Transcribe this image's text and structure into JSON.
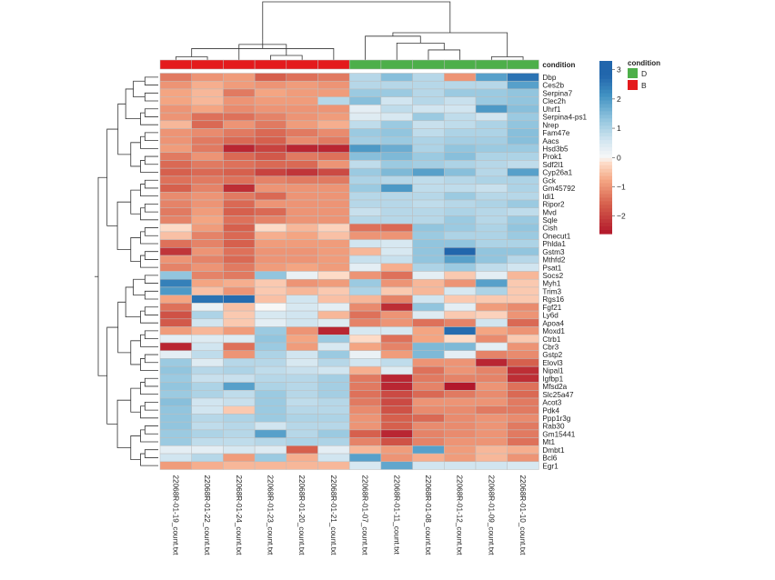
{
  "chart_data": {
    "type": "heatmap",
    "title": "",
    "xlabel": "",
    "ylabel": "",
    "annotation_label": "condition",
    "samples": [
      "22068R-01-19_count.txt",
      "22068R-01-22_count.txt",
      "22068R-01-24_count.txt",
      "22068R-01-23_count.txt",
      "22068R-01-20_count.txt",
      "22068R-01-21_count.txt",
      "22068R-01-07_count.txt",
      "22068R-01-11_count.txt",
      "22068R-01-08_count.txt",
      "22068R-01-12_count.txt",
      "22068R-01-09_count.txt",
      "22068R-01-10_count.txt"
    ],
    "sample_condition": [
      "B",
      "B",
      "B",
      "B",
      "B",
      "B",
      "D",
      "D",
      "D",
      "D",
      "D",
      "D"
    ],
    "condition_colors": {
      "D": "#4daf4a",
      "B": "#e41a1c"
    },
    "genes": [
      "Dbp",
      "Ces2b",
      "Serpina7",
      "Clec2h",
      "Uhrf1",
      "Serpina4-ps1",
      "Nrep",
      "Fam47e",
      "Aacs",
      "Hsd3b5",
      "Prok1",
      "Sdf2l1",
      "Cyp26a1",
      "Gck",
      "Gm45792",
      "Idi1",
      "Ripor2",
      "Mvd",
      "Sqle",
      "Cish",
      "Onecut1",
      "Phlda1",
      "Gstm3",
      "Mthfd2",
      "Psat1",
      "Socs2",
      "Myh1",
      "Trim3",
      "Rgs16",
      "Fgf21",
      "Ly6d",
      "Apoa4",
      "Moxd1",
      "Ctrb1",
      "Cbr3",
      "Gstp2",
      "Elovl3",
      "Nipal1",
      "Igfbp1",
      "Mfsd2a",
      "Slc25a47",
      "Acot3",
      "Pdk4",
      "Ppp1r3g",
      "Rab30",
      "Gm15441",
      "Mt1",
      "Dmbt1",
      "Bcl6",
      "Egr1"
    ],
    "values": [
      [
        -1.3,
        -1.0,
        -0.9,
        -1.6,
        -1.4,
        -1.3,
        0.9,
        1.4,
        0.9,
        -1.0,
        1.9,
        2.6
      ],
      [
        -1.0,
        -0.7,
        -0.9,
        -1.0,
        -0.9,
        -1.0,
        0.9,
        0.9,
        0.9,
        0.9,
        0.9,
        1.9
      ],
      [
        -0.8,
        -0.6,
        -1.3,
        -0.8,
        -0.9,
        -0.9,
        1.2,
        1.2,
        0.9,
        1.2,
        1.2,
        1.3
      ],
      [
        -0.8,
        -0.6,
        -1.0,
        -0.9,
        -0.9,
        0.9,
        1.4,
        0.6,
        0.9,
        0.7,
        1.2,
        1.3
      ],
      [
        -1.0,
        -0.8,
        -1.1,
        -1.0,
        -1.0,
        -1.0,
        0.3,
        0.8,
        0.6,
        0.6,
        2.0,
        1.4
      ],
      [
        -1.0,
        -1.4,
        -1.4,
        -1.2,
        -1.0,
        -0.9,
        0.4,
        0.5,
        1.2,
        0.8,
        0.6,
        1.2
      ],
      [
        -0.6,
        -1.5,
        -1.0,
        -1.3,
        -0.9,
        -0.7,
        0.8,
        1.2,
        0.7,
        0.8,
        1.0,
        1.3
      ],
      [
        -1.0,
        -1.1,
        -1.3,
        -1.5,
        -1.3,
        -1.1,
        1.2,
        1.3,
        0.8,
        1.0,
        1.0,
        1.4
      ],
      [
        -1.0,
        -1.3,
        -1.5,
        -1.6,
        -1.1,
        -1.3,
        1.1,
        1.2,
        1.0,
        1.1,
        1.1,
        1.4
      ],
      [
        -0.9,
        -1.3,
        -2.4,
        -2.0,
        -2.4,
        -2.4,
        2.0,
        1.7,
        1.0,
        1.3,
        1.2,
        1.2
      ],
      [
        -1.3,
        -1.0,
        -1.5,
        -1.7,
        -1.3,
        -1.4,
        1.4,
        1.5,
        1.2,
        1.4,
        1.0,
        1.0
      ],
      [
        -1.5,
        -1.3,
        -1.4,
        -1.5,
        -1.5,
        -1.0,
        0.8,
        1.2,
        1.1,
        1.0,
        0.9,
        0.8
      ],
      [
        -1.6,
        -1.5,
        -1.6,
        -2.0,
        -2.2,
        -1.9,
        1.2,
        1.5,
        1.9,
        1.4,
        0.9,
        1.9
      ],
      [
        -1.4,
        -1.3,
        -1.4,
        -1.2,
        -1.3,
        -1.3,
        1.0,
        0.9,
        0.8,
        0.9,
        1.0,
        1.0
      ],
      [
        -1.6,
        -1.2,
        -2.3,
        -1.0,
        -1.0,
        -1.0,
        1.2,
        2.0,
        0.8,
        0.8,
        0.7,
        1.0
      ],
      [
        -1.1,
        -1.0,
        -1.3,
        -1.5,
        -1.0,
        -1.0,
        0.9,
        0.9,
        0.9,
        1.2,
        0.9,
        0.9
      ],
      [
        -1.2,
        -1.0,
        -1.5,
        -1.0,
        -1.0,
        -1.0,
        0.9,
        0.9,
        0.8,
        0.9,
        1.0,
        1.2
      ],
      [
        -1.3,
        -0.9,
        -1.6,
        -1.5,
        -1.0,
        -1.0,
        0.7,
        0.9,
        0.9,
        1.0,
        0.9,
        0.8
      ],
      [
        -1.2,
        -0.8,
        -1.4,
        -1.2,
        -1.0,
        -1.0,
        0.9,
        0.9,
        0.9,
        1.2,
        0.9,
        1.2
      ],
      [
        -0.2,
        -0.9,
        -1.6,
        -0.2,
        -0.6,
        -0.3,
        -1.4,
        -1.5,
        1.3,
        1.2,
        1.0,
        1.3
      ],
      [
        -0.5,
        -1.2,
        -1.5,
        -0.7,
        -0.8,
        -0.5,
        -1.0,
        -1.0,
        1.2,
        1.0,
        1.0,
        1.2
      ],
      [
        -1.4,
        -1.2,
        -1.6,
        -0.9,
        -0.9,
        -0.9,
        0.6,
        0.5,
        1.3,
        1.3,
        1.0,
        1.0
      ],
      [
        -2.2,
        -1.0,
        -1.4,
        -1.0,
        -1.0,
        -0.9,
        -0.6,
        0.5,
        1.3,
        2.8,
        1.3,
        1.3
      ],
      [
        -1.0,
        -1.2,
        -1.5,
        -1.0,
        -1.0,
        -0.9,
        0.7,
        0.7,
        1.3,
        1.9,
        1.3,
        0.9
      ],
      [
        -1.2,
        -1.0,
        -1.3,
        -0.9,
        -0.8,
        -0.9,
        0.3,
        -0.7,
        1.0,
        1.2,
        0.8,
        0.6
      ],
      [
        1.3,
        -1.2,
        -1.3,
        1.3,
        0.2,
        -0.2,
        -1.0,
        -1.4,
        0.3,
        -0.4,
        0.3,
        -0.6
      ],
      [
        2.4,
        -0.8,
        -0.7,
        -0.4,
        -1.0,
        -0.9,
        1.2,
        -1.0,
        -0.6,
        -1.0,
        1.9,
        -0.4
      ],
      [
        2.0,
        -0.5,
        -1.0,
        -0.4,
        -0.6,
        -0.4,
        1.0,
        -0.4,
        -0.6,
        0.5,
        1.0,
        -0.4
      ],
      [
        -0.8,
        2.6,
        2.7,
        -0.5,
        0.6,
        -0.5,
        -0.6,
        -1.2,
        0.6,
        -0.4,
        -0.4,
        -0.4
      ],
      [
        -1.4,
        0.2,
        -0.5,
        0.0,
        0.5,
        0.3,
        -1.1,
        -2.3,
        1.3,
        0.3,
        -0.9,
        -1.1
      ],
      [
        -1.8,
        1.0,
        -0.4,
        0.5,
        0.6,
        -0.6,
        -1.4,
        -1.0,
        0.4,
        -0.4,
        -0.3,
        -1.0
      ],
      [
        -1.7,
        0.6,
        -0.4,
        0.3,
        0.6,
        0.4,
        -1.2,
        -1.0,
        -1.4,
        -1.2,
        0.6,
        -1.5
      ],
      [
        -0.9,
        -0.6,
        -0.9,
        1.2,
        -1.0,
        -2.4,
        0.5,
        0.5,
        -0.8,
        2.7,
        -0.8,
        -1.0
      ],
      [
        0.3,
        0.4,
        0.4,
        1.3,
        -0.8,
        1.2,
        -0.2,
        -1.4,
        -0.8,
        -0.2,
        -1.1,
        -0.4
      ],
      [
        -2.4,
        0.6,
        -1.4,
        1.2,
        -0.9,
        0.5,
        -0.8,
        -1.2,
        1.5,
        1.5,
        0.3,
        -1.0
      ],
      [
        0.3,
        0.8,
        -1.0,
        1.0,
        0.6,
        1.2,
        0.2,
        -0.9,
        1.5,
        0.3,
        -1.2,
        -1.1
      ],
      [
        1.2,
        0.4,
        0.9,
        0.9,
        0.5,
        0.9,
        0.6,
        0.8,
        -1.0,
        -1.0,
        -2.4,
        -1.6
      ],
      [
        1.3,
        0.9,
        1.0,
        0.8,
        0.7,
        0.6,
        -0.7,
        0.4,
        -1.4,
        -1.0,
        -1.2,
        -2.3
      ],
      [
        1.2,
        0.7,
        0.7,
        0.9,
        0.9,
        1.1,
        -1.3,
        -2.4,
        -1.3,
        -1.2,
        -1.2,
        -2.3
      ],
      [
        1.3,
        1.0,
        1.9,
        1.0,
        0.9,
        1.1,
        -1.3,
        -2.4,
        -1.2,
        -2.6,
        -1.0,
        -1.4
      ],
      [
        1.2,
        1.0,
        0.8,
        1.2,
        0.9,
        1.1,
        -1.4,
        -1.9,
        -1.5,
        -1.3,
        -1.1,
        -1.5
      ],
      [
        1.4,
        0.6,
        0.7,
        1.2,
        0.8,
        0.9,
        -1.3,
        -1.9,
        -1.0,
        -1.0,
        -1.0,
        -1.3
      ],
      [
        1.3,
        0.6,
        -0.4,
        1.2,
        0.9,
        0.9,
        -1.1,
        -1.8,
        -1.1,
        -1.1,
        -1.3,
        -1.3
      ],
      [
        1.3,
        0.9,
        1.0,
        1.2,
        1.0,
        1.0,
        -1.0,
        -1.6,
        -1.5,
        -1.1,
        -1.0,
        -1.1
      ],
      [
        1.3,
        0.8,
        0.9,
        0.6,
        0.9,
        0.9,
        -1.0,
        -1.6,
        -1.1,
        -1.1,
        -1.0,
        -1.3
      ],
      [
        1.2,
        1.0,
        0.9,
        1.9,
        0.9,
        1.2,
        -1.6,
        -2.4,
        -1.2,
        -1.1,
        -1.0,
        -1.3
      ],
      [
        1.2,
        0.8,
        0.8,
        0.9,
        1.0,
        1.0,
        -1.2,
        -1.8,
        -1.2,
        -1.0,
        -1.0,
        -1.4
      ],
      [
        0.3,
        0.3,
        0.5,
        0.4,
        -1.6,
        0.3,
        -0.6,
        -0.9,
        1.9,
        -0.9,
        -0.6,
        -0.7
      ],
      [
        0.6,
        0.9,
        -0.9,
        1.2,
        -0.7,
        0.6,
        1.9,
        -1.0,
        -0.7,
        -0.9,
        -0.6,
        -1.0
      ],
      [
        -0.9,
        -0.7,
        -0.6,
        -0.6,
        -0.6,
        -0.6,
        0.5,
        1.8,
        0.6,
        0.6,
        0.6,
        0.5
      ]
    ],
    "color_scale": {
      "stops": [
        [
          -2.6,
          "#b2182b"
        ],
        [
          -1.6,
          "#d6604d"
        ],
        [
          -0.8,
          "#f4a582"
        ],
        [
          -0.2,
          "#fddbc7"
        ],
        [
          0.0,
          "#f7f7f7"
        ],
        [
          0.6,
          "#d1e5f0"
        ],
        [
          1.3,
          "#92c5de"
        ],
        [
          2.1,
          "#4393c3"
        ],
        [
          2.8,
          "#2166ac"
        ]
      ],
      "ticks": [
        3,
        2,
        1,
        0,
        -1,
        -2
      ],
      "range": [
        -2.6,
        3.3
      ]
    },
    "legend": {
      "title": "condition",
      "entries": [
        {
          "label": "D",
          "color": "#4daf4a"
        },
        {
          "label": "B",
          "color": "#e41a1c"
        }
      ]
    },
    "col_dendrogram": [
      [
        0,
        1,
        0.2
      ],
      [
        3,
        4,
        0.22
      ],
      [
        12,
        5,
        0.32
      ],
      [
        2,
        13,
        0.38
      ],
      [
        14,
        15,
        0.45
      ],
      [
        10,
        11,
        0.2
      ],
      [
        8,
        9,
        0.3
      ],
      [
        7,
        18,
        0.4
      ],
      [
        6,
        19,
        0.5
      ],
      [
        20,
        17,
        0.55
      ],
      [
        16,
        21,
        1.0
      ]
    ],
    "col_dendrogram_min_height": 0.18
  }
}
